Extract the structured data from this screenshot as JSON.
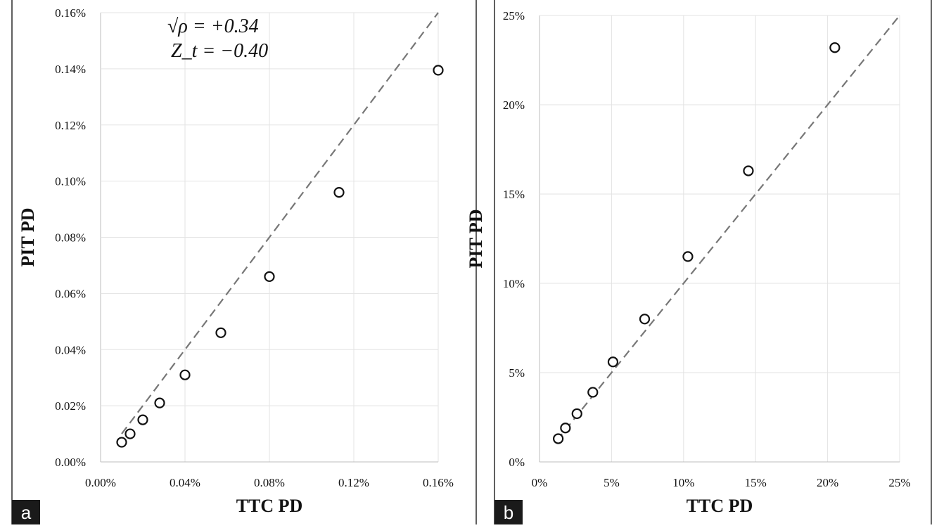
{
  "chart_data": [
    {
      "panel": "a",
      "type": "scatter",
      "xlabel": "TTC PD",
      "ylabel": "PIT PD",
      "xlim": [
        0.0,
        0.16
      ],
      "ylim": [
        0.0,
        0.16
      ],
      "x_ticks": [
        "0.00%",
        "0.04%",
        "0.08%",
        "0.12%",
        "0.16%"
      ],
      "y_ticks": [
        "0.00%",
        "0.02%",
        "0.04%",
        "0.06%",
        "0.08%",
        "0.10%",
        "0.12%",
        "0.14%",
        "0.16%"
      ],
      "x_tick_values": [
        0.0,
        0.04,
        0.08,
        0.12,
        0.16
      ],
      "y_tick_values": [
        0.0,
        0.02,
        0.04,
        0.06,
        0.08,
        0.1,
        0.12,
        0.14,
        0.16
      ],
      "annotations": [
        "√ρ = +0.34",
        "Z_t = −0.40"
      ],
      "reference_line": {
        "style": "dashed",
        "from": [
          0.01,
          0.01
        ],
        "to": [
          0.16,
          0.16
        ]
      },
      "x": [
        0.01,
        0.014,
        0.02,
        0.028,
        0.04,
        0.057,
        0.08,
        0.113,
        0.16
      ],
      "y": [
        0.007,
        0.01,
        0.015,
        0.021,
        0.031,
        0.046,
        0.066,
        0.096,
        0.1395
      ]
    },
    {
      "panel": "b",
      "type": "scatter",
      "xlabel": "TTC PD",
      "ylabel": "PIT PD",
      "xlim": [
        0,
        25
      ],
      "ylim": [
        0,
        25
      ],
      "x_ticks": [
        "0%",
        "5%",
        "10%",
        "15%",
        "20%",
        "25%"
      ],
      "y_ticks": [
        "0%",
        "5%",
        "10%",
        "15%",
        "20%",
        "25%"
      ],
      "x_tick_values": [
        0,
        5,
        10,
        15,
        20,
        25
      ],
      "y_tick_values": [
        0,
        5,
        10,
        15,
        20,
        25
      ],
      "reference_line": {
        "style": "dashed",
        "from": [
          1.2,
          1.2
        ],
        "to": [
          25,
          25
        ]
      },
      "x": [
        1.3,
        1.8,
        2.6,
        3.7,
        5.1,
        7.3,
        10.3,
        14.5,
        20.5
      ],
      "y": [
        1.3,
        1.9,
        2.7,
        3.9,
        5.6,
        8.0,
        11.5,
        16.3,
        23.2
      ]
    }
  ],
  "panel_tags": [
    "a",
    "b"
  ]
}
